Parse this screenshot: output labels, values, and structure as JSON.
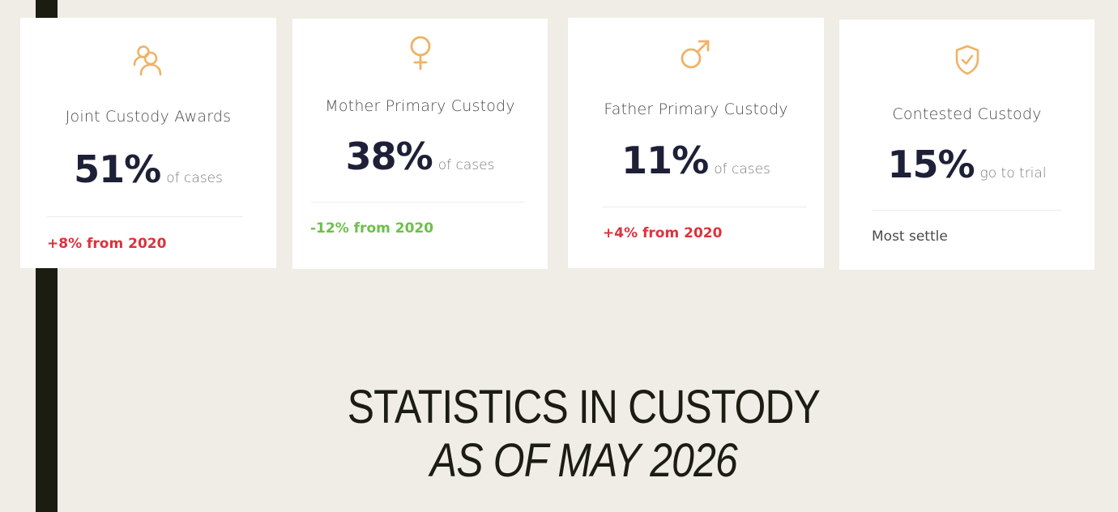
{
  "cards": [
    {
      "icon": "users-icon",
      "label": "Joint Custody Awards",
      "value": "51%",
      "suffix": "of cases",
      "trend": "+8% from 2020",
      "trend_type": "up"
    },
    {
      "icon": "female-icon",
      "label": "Mother Primary Custody",
      "value": "38%",
      "suffix": "of cases",
      "trend": "-12% from 2020",
      "trend_type": "down"
    },
    {
      "icon": "male-icon",
      "label": "Father Primary Custody",
      "value": "11%",
      "suffix": "of cases",
      "trend": "+4% from 2020",
      "trend_type": "up"
    },
    {
      "icon": "shield-check-icon",
      "label": "Contested Custody",
      "value": "15%",
      "suffix": "go to trial",
      "trend": "Most settle",
      "trend_type": "neutral"
    }
  ],
  "heading": {
    "line1": "STATISTICS IN CUSTODY",
    "line2": "AS OF MAY 2026"
  },
  "colors": {
    "accent": "#f0b266",
    "up": "#d9343c",
    "down": "#6cc04a",
    "value": "#1e2038",
    "background": "#efede5",
    "bar": "#1b1c12"
  }
}
